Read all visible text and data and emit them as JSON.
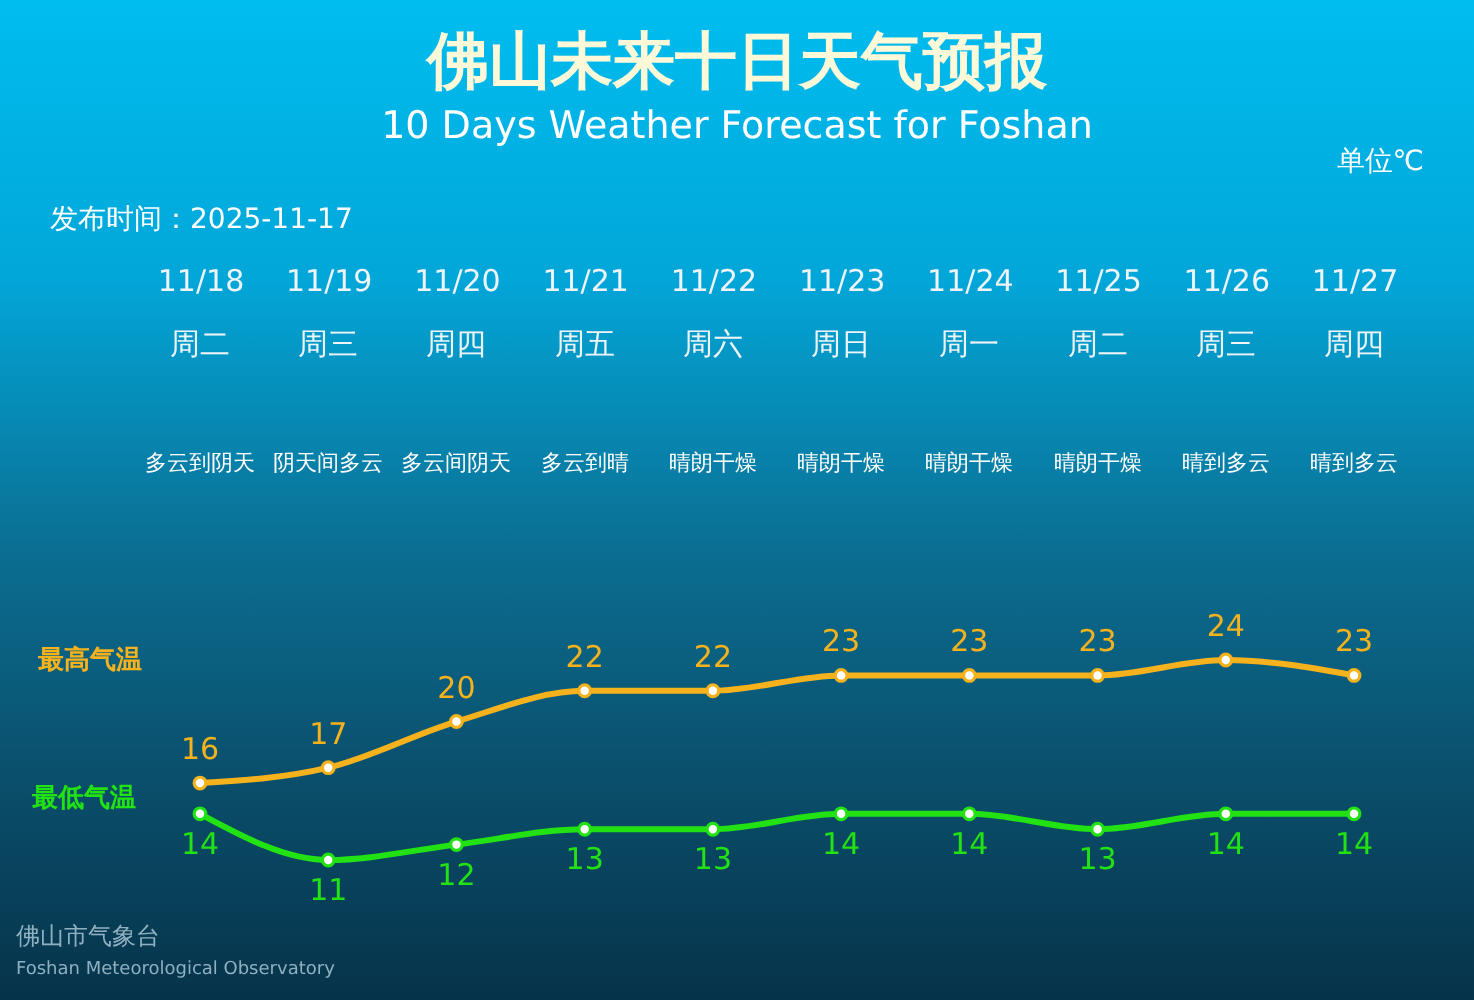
{
  "chart_data": {
    "type": "line",
    "title": "佛山未来十日天气预报",
    "subtitle": "10 Days Weather Forecast for Foshan",
    "categories": [
      "11/18",
      "11/19",
      "11/20",
      "11/21",
      "11/22",
      "11/23",
      "11/24",
      "11/25",
      "11/26",
      "11/27"
    ],
    "series": [
      {
        "name": "最高气温",
        "color": "#f5b21c",
        "values": [
          16,
          17,
          20,
          22,
          22,
          23,
          23,
          23,
          24,
          23
        ]
      },
      {
        "name": "最低气温",
        "color": "#22e214",
        "values": [
          14,
          11,
          12,
          13,
          13,
          14,
          14,
          13,
          14,
          14
        ]
      }
    ],
    "tick_labels": "x",
    "grid": false,
    "marker": "circle",
    "line_style": "solid",
    "data_labels": true,
    "annotations": [
      "单位℃",
      "发布时间：2025-11-17",
      "佛山市气象台",
      "Foshan Meteorological Observatory",
      "周二",
      "周三",
      "周四",
      "周五",
      "周六",
      "周日",
      "周一",
      "周二",
      "周三",
      "周四",
      "多云到阴天",
      "阴天间多云",
      "多云间阴天",
      "多云到晴",
      "晴朗干燥",
      "晴朗干燥",
      "晴朗干燥",
      "晴朗干燥",
      "晴到多云",
      "晴到多云"
    ]
  }
}
